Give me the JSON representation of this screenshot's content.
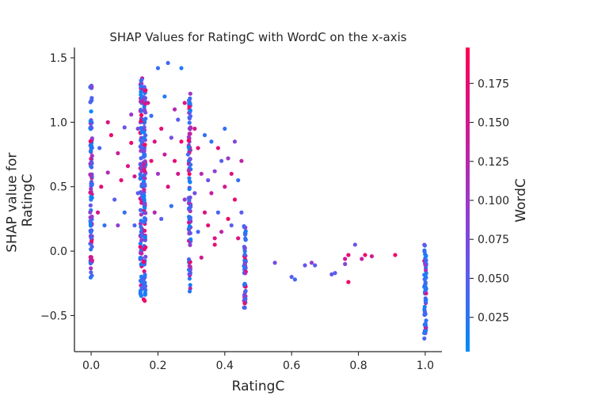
{
  "chart_data": {
    "type": "scatter",
    "title": "SHAP Values for RatingC with WordC on the x-axis",
    "xlabel": "RatingC",
    "ylabel_lines": [
      "SHAP value for",
      "RatingC"
    ],
    "xlim": [
      -0.05,
      1.05
    ],
    "ylim": [
      -0.78,
      1.58
    ],
    "xticks": [
      0.0,
      0.2,
      0.4,
      0.6,
      0.8,
      1.0
    ],
    "xtick_labels": [
      "0.0",
      "0.2",
      "0.4",
      "0.6",
      "0.8",
      "1.0"
    ],
    "yticks": [
      -0.5,
      0.0,
      0.5,
      1.0,
      1.5
    ],
    "ytick_labels": [
      "−0.5",
      "0.0",
      "0.5",
      "1.0",
      "1.5"
    ],
    "colorbar": {
      "label": "WordC",
      "range": [
        0.003,
        0.198
      ],
      "ticks": [
        0.025,
        0.05,
        0.075,
        0.1,
        0.125,
        0.15,
        0.175
      ],
      "tick_labels": [
        "0.025",
        "0.050",
        "0.075",
        "0.100",
        "0.125",
        "0.150",
        "0.175"
      ],
      "colors": [
        "#008afb",
        "#5b5cf0",
        "#9e37c8",
        "#d11890",
        "#ff0052"
      ]
    },
    "columns": [
      {
        "x": 0.0,
        "y_min": -0.23,
        "y_max": 1.31
      },
      {
        "x": 0.15,
        "y_min": -0.35,
        "y_max": 1.36
      },
      {
        "x": 0.16,
        "y_min": -0.4,
        "y_max": 1.3
      },
      {
        "x": 0.295,
        "y_min": -0.36,
        "y_max": 1.23
      },
      {
        "x": 0.46,
        "y_min": -0.45,
        "y_max": 0.2
      },
      {
        "x": 1.0,
        "y_min": -0.68,
        "y_max": 0.08
      }
    ],
    "scattered_points": [
      [
        0.02,
        0.3,
        0.15
      ],
      [
        0.025,
        0.8,
        0.04
      ],
      [
        0.03,
        0.5,
        0.17
      ],
      [
        0.04,
        0.2,
        0.03
      ],
      [
        0.05,
        1.0,
        0.16
      ],
      [
        0.05,
        0.61,
        0.12
      ],
      [
        0.06,
        0.9,
        0.18
      ],
      [
        0.07,
        0.4,
        0.05
      ],
      [
        0.08,
        0.76,
        0.14
      ],
      [
        0.08,
        0.2,
        0.09
      ],
      [
        0.09,
        0.55,
        0.17
      ],
      [
        0.1,
        0.96,
        0.06
      ],
      [
        0.1,
        0.3,
        0.03
      ],
      [
        0.11,
        0.66,
        0.16
      ],
      [
        0.12,
        1.06,
        0.1
      ],
      [
        0.12,
        0.84,
        0.18
      ],
      [
        0.13,
        0.2,
        0.04
      ],
      [
        0.13,
        0.58,
        0.15
      ],
      [
        0.14,
        0.95,
        0.08
      ],
      [
        0.14,
        0.45,
        0.05
      ],
      [
        0.17,
        1.15,
        0.15
      ],
      [
        0.18,
        0.7,
        0.17
      ],
      [
        0.18,
        1.05,
        0.03
      ],
      [
        0.19,
        0.3,
        0.12
      ],
      [
        0.19,
        0.85,
        0.16
      ],
      [
        0.2,
        1.42,
        0.03
      ],
      [
        0.2,
        0.6,
        0.1
      ],
      [
        0.21,
        0.95,
        0.17
      ],
      [
        0.21,
        0.25,
        0.05
      ],
      [
        0.22,
        0.75,
        0.14
      ],
      [
        0.22,
        1.2,
        0.02
      ],
      [
        0.23,
        1.46,
        0.04
      ],
      [
        0.23,
        0.5,
        0.16
      ],
      [
        0.24,
        0.88,
        0.07
      ],
      [
        0.24,
        0.35,
        0.03
      ],
      [
        0.25,
        0.7,
        0.17
      ],
      [
        0.25,
        1.1,
        0.12
      ],
      [
        0.26,
        1.02,
        0.05
      ],
      [
        0.26,
        0.6,
        0.15
      ],
      [
        0.27,
        0.85,
        0.18
      ],
      [
        0.27,
        1.42,
        0.02
      ],
      [
        0.28,
        0.4,
        0.1
      ],
      [
        0.28,
        1.15,
        0.16
      ],
      [
        0.29,
        0.75,
        0.04
      ],
      [
        0.31,
        0.95,
        0.15
      ],
      [
        0.31,
        0.45,
        0.07
      ],
      [
        0.32,
        0.8,
        0.17
      ],
      [
        0.32,
        0.15,
        0.04
      ],
      [
        0.33,
        0.6,
        0.12
      ],
      [
        0.34,
        0.3,
        0.16
      ],
      [
        0.34,
        0.9,
        0.03
      ],
      [
        0.35,
        0.2,
        0.17
      ],
      [
        0.35,
        0.55,
        0.06
      ],
      [
        0.36,
        0.85,
        0.03
      ],
      [
        0.36,
        0.45,
        0.14
      ],
      [
        0.37,
        0.1,
        0.16
      ],
      [
        0.37,
        0.62,
        0.09
      ],
      [
        0.38,
        0.3,
        0.04
      ],
      [
        0.38,
        0.8,
        0.17
      ],
      [
        0.39,
        0.7,
        0.05
      ],
      [
        0.39,
        0.15,
        0.13
      ],
      [
        0.4,
        0.5,
        0.15
      ],
      [
        0.4,
        0.95,
        0.03
      ],
      [
        0.41,
        0.25,
        0.18
      ],
      [
        0.41,
        0.72,
        0.1
      ],
      [
        0.42,
        0.6,
        0.16
      ],
      [
        0.42,
        0.2,
        0.05
      ],
      [
        0.43,
        0.85,
        0.08
      ],
      [
        0.43,
        0.4,
        0.17
      ],
      [
        0.44,
        0.55,
        0.03
      ],
      [
        0.44,
        0.1,
        0.16
      ],
      [
        0.45,
        0.7,
        0.13
      ],
      [
        0.45,
        0.3,
        0.05
      ],
      [
        0.37,
        0.05,
        0.17
      ],
      [
        0.33,
        -0.05,
        0.15
      ],
      [
        0.55,
        -0.09,
        0.07
      ],
      [
        0.6,
        -0.2,
        0.05
      ],
      [
        0.61,
        -0.22,
        0.04
      ],
      [
        0.64,
        -0.11,
        0.06
      ],
      [
        0.66,
        -0.09,
        0.09
      ],
      [
        0.67,
        -0.11,
        0.05
      ],
      [
        0.72,
        -0.18,
        0.06
      ],
      [
        0.73,
        -0.17,
        0.05
      ],
      [
        0.76,
        -0.06,
        0.15
      ],
      [
        0.76,
        -0.1,
        0.08
      ],
      [
        0.77,
        -0.24,
        0.18
      ],
      [
        0.77,
        -0.03,
        0.17
      ],
      [
        0.79,
        0.05,
        0.06
      ],
      [
        0.81,
        -0.06,
        0.13
      ],
      [
        0.82,
        -0.03,
        0.18
      ],
      [
        0.84,
        -0.04,
        0.14
      ],
      [
        0.91,
        -0.03,
        0.18
      ]
    ]
  }
}
